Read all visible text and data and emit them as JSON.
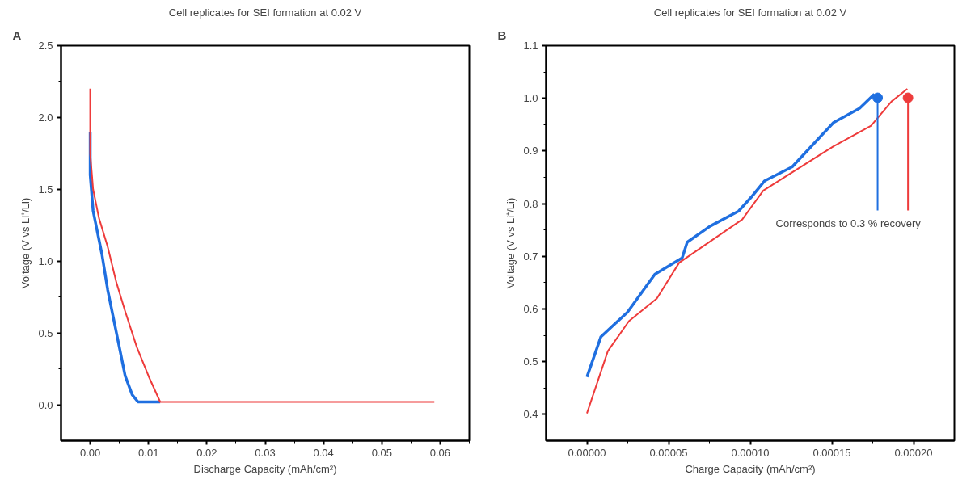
{
  "chart_data": [
    {
      "type": "line",
      "title": "Cell replicates for SEI formation at 0.02 V",
      "xlabel": "Discharge Capacity (mAh/cm²)",
      "ylabel": "Voltage (V vs Li⁺/Li)",
      "annotations": [
        "A"
      ],
      "xlim": [
        -0.005,
        0.065
      ],
      "xticks": [
        {
          "value": 0,
          "label": "0.00"
        },
        0.01,
        0.02,
        0.03,
        0.04,
        0.05,
        0.06
      ],
      "ylim": [
        -0.25,
        2.5
      ],
      "yticks": [
        {
          "value": 0,
          "label": "0.0"
        },
        0.5,
        {
          "value": 1,
          "label": "1.0"
        },
        1.5,
        {
          "value": 2,
          "label": "2.0"
        },
        2.5
      ],
      "grid": false,
      "series": [
        {
          "color": "#1f6fe0",
          "x": [
            0,
            0,
            0.0005,
            0.0015,
            0.002,
            0.003,
            0.004,
            0.005,
            0.006,
            0.0072,
            0.0082,
            0.012
          ],
          "values": [
            1.9,
            1.6,
            1.35,
            1.15,
            1.05,
            0.8,
            0.6,
            0.4,
            0.2,
            0.07,
            0.02,
            0.02
          ]
        },
        {
          "color": "#ee3b3b",
          "x": [
            0,
            0,
            0.0005,
            0.0015,
            0.003,
            0.0045,
            0.006,
            0.008,
            0.01,
            0.012,
            0.059
          ],
          "values": [
            2.2,
            1.75,
            1.5,
            1.3,
            1.1,
            0.85,
            0.65,
            0.4,
            0.2,
            0.02,
            0.02
          ]
        }
      ]
    },
    {
      "type": "line",
      "title": "Cell replicates for SEI formation at 0.02 V",
      "xlabel": "Charge Capacity (mAh/cm²)",
      "ylabel": "Voltage (V vs Li⁺/Li)",
      "annotations": [
        "B",
        "Corresponds to 0.3 % recovery"
      ],
      "xlim": [
        -2.5e-05,
        0.000225
      ],
      "xticks": [
        {
          "value": 0,
          "label": "0.00000"
        },
        {
          "value": 5e-05,
          "label": "0.00005"
        },
        {
          "value": 0.0001,
          "label": "0.00010"
        },
        {
          "value": 0.00015,
          "label": "0.00015"
        },
        {
          "value": 0.0002,
          "label": "0.00020"
        }
      ],
      "ylim": [
        0.35,
        1.1
      ],
      "yticks": [
        0.4,
        0.5,
        0.6,
        0.7,
        0.8,
        0.9,
        {
          "value": 1,
          "label": "1.0"
        },
        1.1
      ],
      "grid": false,
      "series": [
        {
          "color": "#1f6fe0",
          "x": [
            0,
            8.5e-06,
            2.48e-05,
            4.16e-05,
            5.83e-05,
            6.14e-05,
            7.53e-05,
            9.29e-05,
            0.0001005,
            0.0001087,
            0.0001257,
            0.000151,
            0.000167,
            0.000176
          ],
          "values": [
            0.471,
            0.547,
            0.594,
            0.666,
            0.697,
            0.727,
            0.757,
            0.786,
            0.812,
            0.843,
            0.87,
            0.954,
            0.981,
            1.008
          ]
        },
        {
          "color": "#ee3b3b",
          "x": [
            0,
            1.28e-05,
            2.57e-05,
            4.28e-05,
            5.65e-05,
            9.51e-05,
            0.000108,
            0.000151,
            0.000174,
            0.0001865,
            0.0001962
          ],
          "values": [
            0.402,
            0.52,
            0.577,
            0.62,
            0.688,
            0.77,
            0.825,
            0.909,
            0.948,
            0.994,
            1.018
          ]
        },
        {
          "type": "line",
          "color": "#1f6fe0",
          "x": [
            0.000178,
            0.000178
          ],
          "values": [
            1.001,
            0.787
          ]
        },
        {
          "type": "line",
          "color": "#ee3b3b",
          "x": [
            0.0001966,
            0.0001966
          ],
          "values": [
            1.001,
            0.787
          ]
        },
        {
          "type": "scatter",
          "marker": "circle",
          "color": "#1f6fe0",
          "x": [
            0.000178
          ],
          "values": [
            1.001
          ]
        },
        {
          "type": "scatter",
          "marker": "circle",
          "color": "#ee3b3b",
          "x": [
            0.0001966
          ],
          "values": [
            1.001
          ]
        }
      ]
    }
  ]
}
